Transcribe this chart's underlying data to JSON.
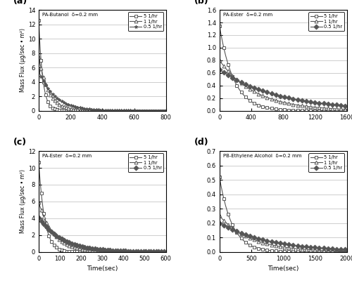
{
  "panels": [
    {
      "label": "(a)",
      "title": "PA-Butanol  δ=0.2 mm",
      "xlim": [
        0,
        800
      ],
      "ylim": [
        0,
        14
      ],
      "yticks": [
        0,
        2,
        4,
        6,
        8,
        10,
        12,
        14
      ],
      "xticks": [
        0,
        200,
        400,
        600,
        800
      ],
      "series": [
        {
          "rate": "5 1/hr",
          "marker": "s",
          "filled": false,
          "tau": 25,
          "y0": 12.5,
          "mevery": 15
        },
        {
          "rate": "1 1/hr",
          "marker": "^",
          "filled": false,
          "tau": 60,
          "y0": 7.5,
          "mevery": 15
        },
        {
          "rate": "0.5 1/hr",
          "marker": "*",
          "filled": true,
          "tau": 100,
          "y0": 5.5,
          "mevery": 15
        }
      ]
    },
    {
      "label": "(b)",
      "title": "PA-Ester  δ=0.2 mm",
      "xlim": [
        0,
        1600
      ],
      "ylim": [
        0,
        1.6
      ],
      "yticks": [
        0.0,
        0.2,
        0.4,
        0.6,
        0.8,
        1.0,
        1.2,
        1.4,
        1.6
      ],
      "xticks": [
        0,
        400,
        800,
        1200,
        1600
      ],
      "series": [
        {
          "rate": "5 1/hr",
          "marker": "s",
          "filled": false,
          "tau": 180,
          "y0": 1.35,
          "mevery": 55
        },
        {
          "rate": "1 1/hr",
          "marker": "^",
          "filled": false,
          "tau": 450,
          "y0": 0.8,
          "mevery": 55
        },
        {
          "rate": "0.5 1/hr",
          "marker": "D",
          "filled": true,
          "tau": 750,
          "y0": 0.65,
          "mevery": 55
        }
      ]
    },
    {
      "label": "(c)",
      "title": "PA-Ester  δ=0.2 mm",
      "xlim": [
        0,
        600
      ],
      "ylim": [
        0,
        12
      ],
      "yticks": [
        0,
        2,
        4,
        6,
        8,
        10,
        12
      ],
      "xticks": [
        0,
        100,
        200,
        300,
        400,
        500,
        600
      ],
      "series": [
        {
          "rate": "5 1/hr",
          "marker": "s",
          "filled": false,
          "tau": 28,
          "y0": 10.7,
          "mevery": 12
        },
        {
          "rate": "1 1/hr",
          "marker": "^",
          "filled": false,
          "tau": 70,
          "y0": 5.9,
          "mevery": 12
        },
        {
          "rate": "0.5 1/hr",
          "marker": "D",
          "filled": true,
          "tau": 110,
          "y0": 4.1,
          "mevery": 12
        }
      ]
    },
    {
      "label": "(d)",
      "title": "PB-Ethylene Alcohol  δ=0.2 mm",
      "xlim": [
        0,
        2000
      ],
      "ylim": [
        0,
        0.7
      ],
      "yticks": [
        0.0,
        0.1,
        0.2,
        0.3,
        0.4,
        0.5,
        0.6,
        0.7
      ],
      "xticks": [
        0,
        500,
        1000,
        1500,
        2000
      ],
      "series": [
        {
          "rate": "5 1/hr",
          "marker": "s",
          "filled": false,
          "tau": 200,
          "y0": 0.52,
          "mevery": 70
        },
        {
          "rate": "1 1/hr",
          "marker": "^",
          "filled": false,
          "tau": 500,
          "y0": 0.25,
          "mevery": 70
        },
        {
          "rate": "0.5 1/hr",
          "marker": "D",
          "filled": true,
          "tau": 800,
          "y0": 0.2,
          "mevery": 70
        }
      ]
    }
  ],
  "xlabel": "Time(sec)",
  "ylabel": "Mass Flux (µg/sec • m²)",
  "line_color": "#555555",
  "marker_size": 3.5
}
